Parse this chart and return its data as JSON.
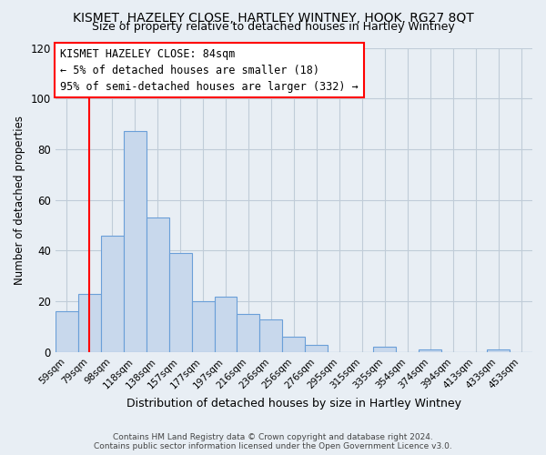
{
  "title": "KISMET, HAZELEY CLOSE, HARTLEY WINTNEY, HOOK, RG27 8QT",
  "subtitle": "Size of property relative to detached houses in Hartley Wintney",
  "xlabel": "Distribution of detached houses by size in Hartley Wintney",
  "ylabel": "Number of detached properties",
  "bin_labels": [
    "59sqm",
    "79sqm",
    "98sqm",
    "118sqm",
    "138sqm",
    "157sqm",
    "177sqm",
    "197sqm",
    "216sqm",
    "236sqm",
    "256sqm",
    "276sqm",
    "295sqm",
    "315sqm",
    "335sqm",
    "354sqm",
    "374sqm",
    "394sqm",
    "413sqm",
    "433sqm",
    "453sqm"
  ],
  "bar_values": [
    16,
    23,
    46,
    87,
    53,
    39,
    20,
    22,
    15,
    13,
    6,
    3,
    0,
    0,
    2,
    0,
    1,
    0,
    0,
    1,
    0
  ],
  "bar_color": "#c8d8ec",
  "bar_edge_color": "#6a9fd8",
  "annotation_box_text": "KISMET HAZELEY CLOSE: 84sqm\n← 5% of detached houses are smaller (18)\n95% of semi-detached houses are larger (332) →",
  "ylim": [
    0,
    120
  ],
  "yticks": [
    0,
    20,
    40,
    60,
    80,
    100,
    120
  ],
  "footer_text": "Contains HM Land Registry data © Crown copyright and database right 2024.\nContains public sector information licensed under the Open Government Licence v3.0.",
  "bg_color": "#e8eef4",
  "plot_bg_color": "#e8eef4",
  "grid_color": "#c0ccd8",
  "red_line_x": 1.0,
  "title_fontsize": 10,
  "subtitle_fontsize": 9,
  "title_fontweight": "normal"
}
